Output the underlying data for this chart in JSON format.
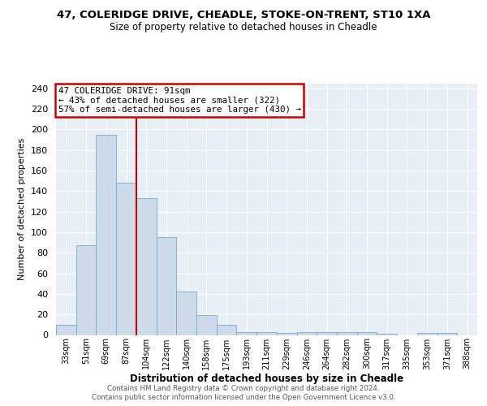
{
  "title1": "47, COLERIDGE DRIVE, CHEADLE, STOKE-ON-TRENT, ST10 1XA",
  "title2": "Size of property relative to detached houses in Cheadle",
  "xlabel": "Distribution of detached houses by size in Cheadle",
  "ylabel": "Number of detached properties",
  "categories": [
    "33sqm",
    "51sqm",
    "69sqm",
    "87sqm",
    "104sqm",
    "122sqm",
    "140sqm",
    "158sqm",
    "175sqm",
    "193sqm",
    "211sqm",
    "229sqm",
    "246sqm",
    "264sqm",
    "282sqm",
    "300sqm",
    "317sqm",
    "335sqm",
    "353sqm",
    "371sqm",
    "388sqm"
  ],
  "values": [
    10,
    87,
    195,
    148,
    133,
    95,
    42,
    19,
    10,
    3,
    3,
    2,
    3,
    3,
    3,
    3,
    1,
    0,
    2,
    2,
    0
  ],
  "bar_color": "#ccdaea",
  "bar_edge_color": "#7ba8c8",
  "vline_x_idx": 3,
  "vline_color": "#cc0000",
  "annotation_title": "47 COLERIDGE DRIVE: 91sqm",
  "annotation_line1": "← 43% of detached houses are smaller (322)",
  "annotation_line2": "57% of semi-detached houses are larger (430) →",
  "annotation_box_color": "#cc0000",
  "ylim": [
    0,
    245
  ],
  "yticks": [
    0,
    20,
    40,
    60,
    80,
    100,
    120,
    140,
    160,
    180,
    200,
    220,
    240
  ],
  "footer1": "Contains HM Land Registry data © Crown copyright and database right 2024.",
  "footer2": "Contains public sector information licensed under the Open Government Licence v3.0.",
  "plot_bg_color": "#e8eef5"
}
